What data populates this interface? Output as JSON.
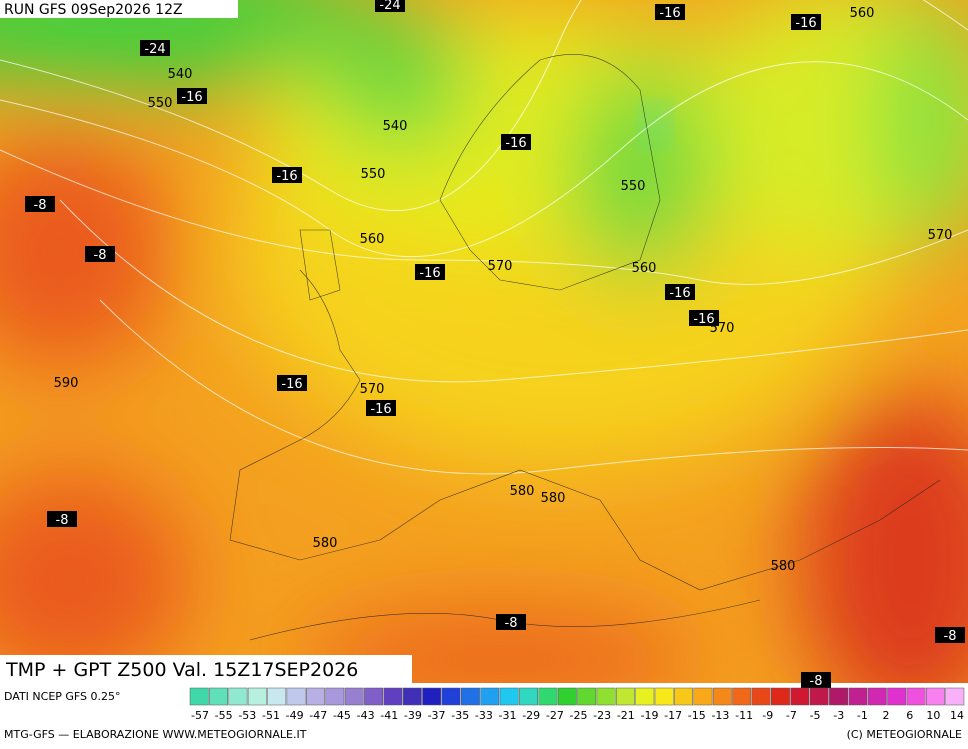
{
  "header": {
    "run": "RUN GFS 09Sep2026 12Z",
    "title": "TMP + GPT Z500 Val. 15Z17SEP2026"
  },
  "map": {
    "geopotential_labels": [
      560,
      540,
      550,
      540,
      550,
      550,
      560,
      570,
      570,
      560,
      570,
      590,
      570,
      580,
      580,
      580,
      580
    ],
    "temperature_labels": [
      -24,
      -16,
      -16,
      -24,
      -16,
      -16,
      -16,
      -8,
      -8,
      -16,
      -16,
      -16,
      -16,
      -16,
      -8,
      -8,
      -8,
      -8
    ]
  },
  "colorbar": {
    "labels": [
      -57,
      -55,
      -53,
      -51,
      -49,
      -47,
      -45,
      -43,
      -41,
      -39,
      -37,
      -35,
      -33,
      -31,
      -29,
      -27,
      -25,
      -23,
      -21,
      -19,
      -17,
      -15,
      -13,
      -11,
      -9,
      -7,
      -5,
      -3,
      -1,
      2,
      6,
      10,
      14
    ]
  },
  "footer": {
    "source": "DATI NCEP GFS 0.25°",
    "credits": "MTG-GFS — ELABORAZIONE WWW.METEOGIORNALE.IT",
    "copyright": "(C) METEOGIORNALE"
  }
}
